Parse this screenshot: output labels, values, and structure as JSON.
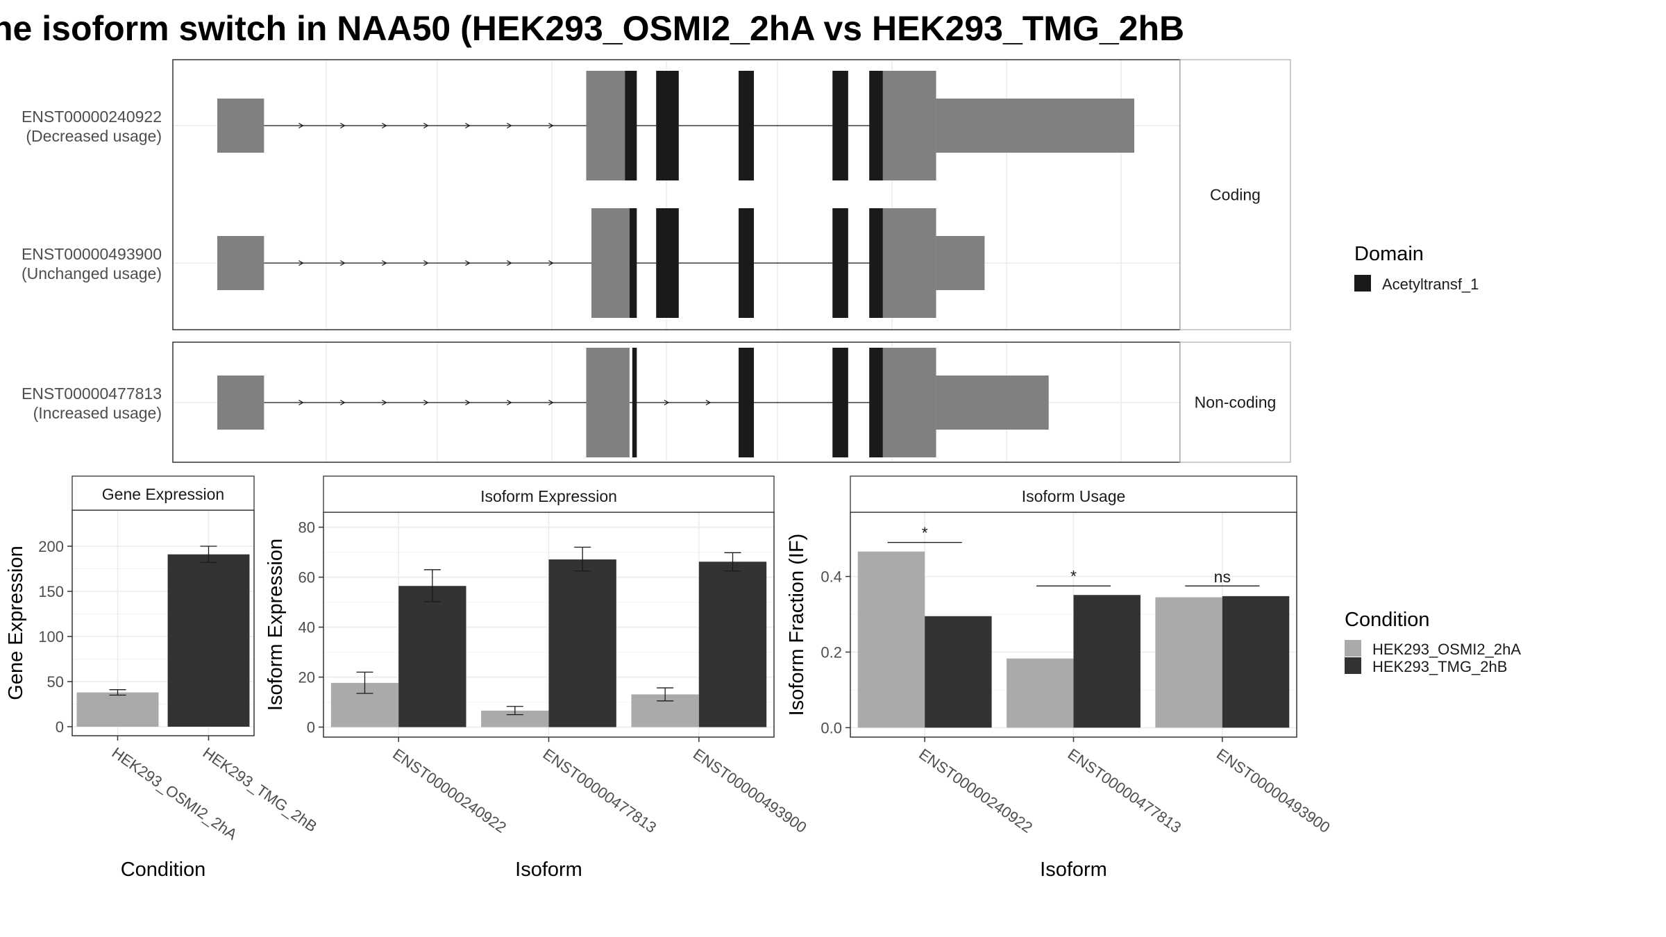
{
  "chart_data": {
    "title": "he isoform switch in NAA50 (HEK293_OSMI2_2hA vs HEK293_TMG_2hB",
    "structure": {
      "type": "gene_structure",
      "facets": [
        "Coding",
        "Non-coding"
      ],
      "transcripts": [
        {
          "id": "ENST00000240922",
          "usage": "(Decreased usage)",
          "facet": "Coding",
          "exons": [
            [
              0,
              135
            ],
            [
              1065,
              1190
            ],
            [
              1267,
              1332
            ],
            [
              1505,
              1549
            ],
            [
              1776,
              1821
            ],
            [
              1883,
              2075
            ],
            [
              2075,
              2647
            ]
          ],
          "cds": [
            [
              1177,
              1211
            ],
            [
              1267,
              1332
            ],
            [
              1505,
              1549
            ],
            [
              1776,
              1821
            ],
            [
              1882,
              1921
            ]
          ]
        },
        {
          "id": "ENST00000493900",
          "usage": "(Unchanged usage)",
          "facet": "Coding",
          "exons": [
            [
              0,
              135
            ],
            [
              1080,
              1190
            ],
            [
              1267,
              1332
            ],
            [
              1505,
              1549
            ],
            [
              1776,
              1821
            ],
            [
              1883,
              2075
            ],
            [
              2075,
              2215
            ]
          ],
          "cds": [
            [
              1190,
              1211
            ],
            [
              1267,
              1332
            ],
            [
              1505,
              1549
            ],
            [
              1776,
              1821
            ],
            [
              1882,
              1921
            ]
          ]
        },
        {
          "id": "ENST00000477813",
          "usage": "(Increased usage)",
          "facet": "Non-coding",
          "exons": [
            [
              0,
              135
            ],
            [
              1065,
              1190
            ],
            [
              1505,
              1549
            ],
            [
              1776,
              1821
            ],
            [
              1883,
              2075
            ],
            [
              2075,
              2400
            ]
          ],
          "cds": [
            [
              1198,
              1211
            ],
            [
              1505,
              1549
            ],
            [
              1776,
              1821
            ],
            [
              1882,
              1921
            ]
          ]
        }
      ]
    },
    "gene_expression": {
      "type": "bar",
      "strip": "Gene Expression",
      "categories": [
        "HEK293_OSMI2_2hA",
        "HEK293_TMG_2hB"
      ],
      "values": [
        38,
        191
      ],
      "errors": [
        [
          35,
          41
        ],
        [
          182,
          200
        ]
      ],
      "yticks": [
        0,
        50,
        100,
        150,
        200
      ],
      "ylim": [
        -10,
        240
      ],
      "xlabel": "Condition",
      "ylabel": "Gene Expression"
    },
    "isoform_expression": {
      "type": "bar",
      "strip": "Isoform Expression",
      "categories": [
        "ENST00000240922",
        "ENST00000477813",
        "ENST00000493900"
      ],
      "series": [
        {
          "name": "HEK293_OSMI2_2hA",
          "values": [
            17.7,
            6.6,
            13.1
          ],
          "errors": [
            [
              13.5,
              22
            ],
            [
              5,
              8.3
            ],
            [
              10.5,
              15.7
            ]
          ]
        },
        {
          "name": "HEK293_TMG_2hB",
          "values": [
            56.5,
            67.1,
            66.2
          ],
          "errors": [
            [
              50.2,
              63
            ],
            [
              62.5,
              72
            ],
            [
              62.5,
              69.8
            ]
          ]
        }
      ],
      "yticks": [
        0,
        20,
        40,
        60,
        80
      ],
      "ylim": [
        -4,
        86
      ],
      "xlabel": "Isoform",
      "ylabel": "Isoform Expression"
    },
    "isoform_usage": {
      "type": "bar",
      "strip": "Isoform Usage",
      "categories": [
        "ENST00000240922",
        "ENST00000477813",
        "ENST00000493900"
      ],
      "series": [
        {
          "name": "HEK293_OSMI2_2hA",
          "values": [
            0.466,
            0.183,
            0.345
          ]
        },
        {
          "name": "HEK293_TMG_2hB",
          "values": [
            0.295,
            0.351,
            0.348
          ]
        }
      ],
      "significance": [
        "*",
        "*",
        "ns"
      ],
      "sig_y": [
        0.49,
        0.375,
        0.375
      ],
      "yticks": [
        0.0,
        0.2,
        0.4
      ],
      "ytick_labels": [
        "0.0",
        "0.2",
        "0.4"
      ],
      "ylim": [
        -0.025,
        0.57
      ],
      "xlabel": "Isoform",
      "ylabel": "Isoform Fraction (IF)"
    },
    "legend_domain": {
      "title": "Domain",
      "items": [
        "Acetyltransf_1"
      ]
    },
    "legend_condition": {
      "title": "Condition",
      "items": [
        "HEK293_OSMI2_2hA",
        "HEK293_TMG_2hB"
      ]
    }
  },
  "colors": {
    "exon": "#808080",
    "domain": "#1a1a1a",
    "cond_a": "#aaaaaa",
    "cond_b": "#333333",
    "grid": "#ebebeb",
    "panel_border": "#333333",
    "strip_border": "#b3b3b3"
  }
}
